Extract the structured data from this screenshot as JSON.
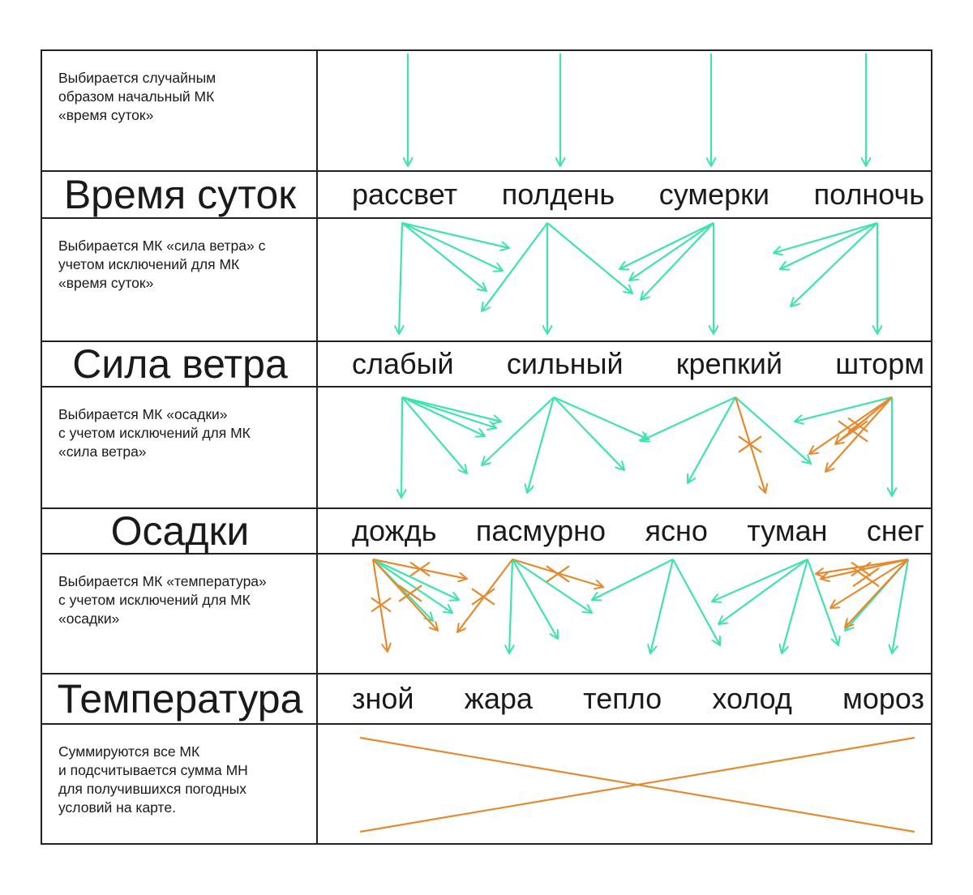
{
  "colors": {
    "green": "#3ee3ad",
    "orange": "#e58a2e",
    "border": "#222222"
  },
  "rows": [
    {
      "type": "desc",
      "text": "Выбирается случайным\nобразом начальный МК\n«время суток»"
    },
    {
      "type": "values",
      "heading": "Время суток",
      "values": [
        "рассвет",
        "полдень",
        "сумерки",
        "полночь"
      ]
    },
    {
      "type": "desc",
      "text": "Выбирается МК «сила ветра» с\nучетом исключений для МК\n«время суток»"
    },
    {
      "type": "values",
      "heading": "Сила ветра",
      "values": [
        "слабый",
        "сильный",
        "крепкий",
        "шторм"
      ]
    },
    {
      "type": "desc",
      "text": "Выбирается МК «осадки»\nс учетом исключений для МК\n«сила ветра»"
    },
    {
      "type": "values",
      "heading": "Осадки",
      "values": [
        "дождь",
        "пасмурно",
        "ясно",
        "туман",
        "снег"
      ]
    },
    {
      "type": "desc",
      "text": "Выбирается МК «температура»\nс учетом исключений для МК\n«осадки»"
    },
    {
      "type": "values",
      "heading": "Температура",
      "values": [
        "зной",
        "жара",
        "тепло",
        "холод",
        "мороз"
      ]
    },
    {
      "type": "desc",
      "text": "Суммируются все МК\nи подсчитывается сумма МН\nдля получившихся погодных\nусловий на карте."
    }
  ]
}
